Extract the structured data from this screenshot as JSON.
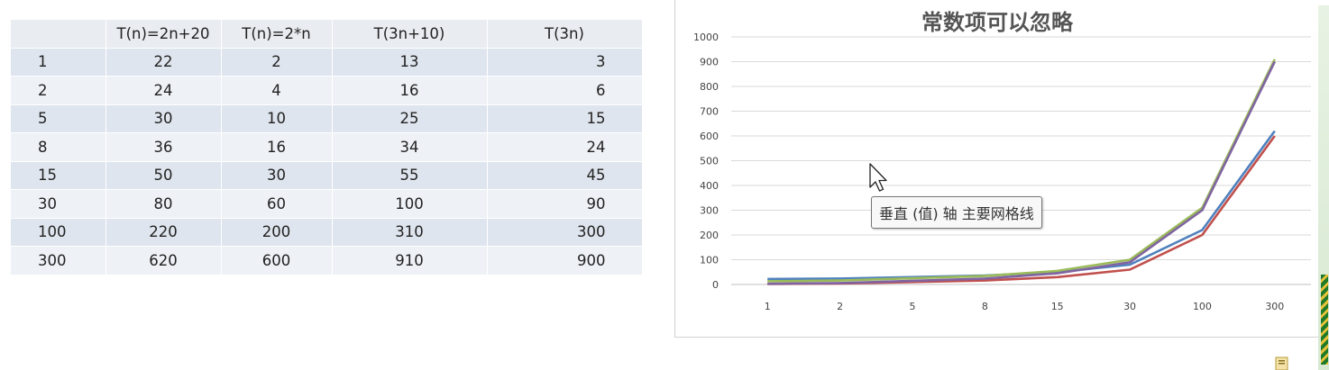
{
  "table": {
    "headers": [
      "",
      "T(n)=2n+20",
      "T(n)=2*n",
      "T(3n+10)",
      "T(3n)"
    ],
    "rows": [
      [
        "1",
        "22",
        "2",
        "13",
        "3"
      ],
      [
        "2",
        "24",
        "4",
        "16",
        "6"
      ],
      [
        "5",
        "30",
        "10",
        "25",
        "15"
      ],
      [
        "8",
        "36",
        "16",
        "34",
        "24"
      ],
      [
        "15",
        "50",
        "30",
        "55",
        "45"
      ],
      [
        "30",
        "80",
        "60",
        "100",
        "90"
      ],
      [
        "100",
        "220",
        "200",
        "310",
        "300"
      ],
      [
        "300",
        "620",
        "600",
        "910",
        "900"
      ]
    ]
  },
  "chart_data": {
    "type": "line",
    "title": "常数项可以忽略",
    "categories": [
      "1",
      "2",
      "5",
      "8",
      "15",
      "30",
      "100",
      "300"
    ],
    "series": [
      {
        "values": [
          22,
          24,
          30,
          36,
          50,
          80,
          220,
          620
        ],
        "color": "#4f81bd"
      },
      {
        "values": [
          2,
          4,
          10,
          16,
          30,
          60,
          200,
          600
        ],
        "color": "#c0504d"
      },
      {
        "values": [
          13,
          16,
          25,
          34,
          55,
          100,
          310,
          910
        ],
        "color": "#9bbb59"
      },
      {
        "values": [
          3,
          6,
          15,
          24,
          45,
          90,
          300,
          900
        ],
        "color": "#8064a2"
      }
    ],
    "y_ticks": [
      "0",
      "100",
      "200",
      "300",
      "400",
      "500",
      "600",
      "700",
      "800",
      "900",
      "1000"
    ],
    "ylim": [
      0,
      1000
    ],
    "grid": true,
    "legend": "none"
  },
  "tooltip": {
    "text": "垂直 (值) 轴 主要网格线"
  },
  "icons": {
    "cursor": "arrow-cursor-icon",
    "corner": "file-icon"
  }
}
